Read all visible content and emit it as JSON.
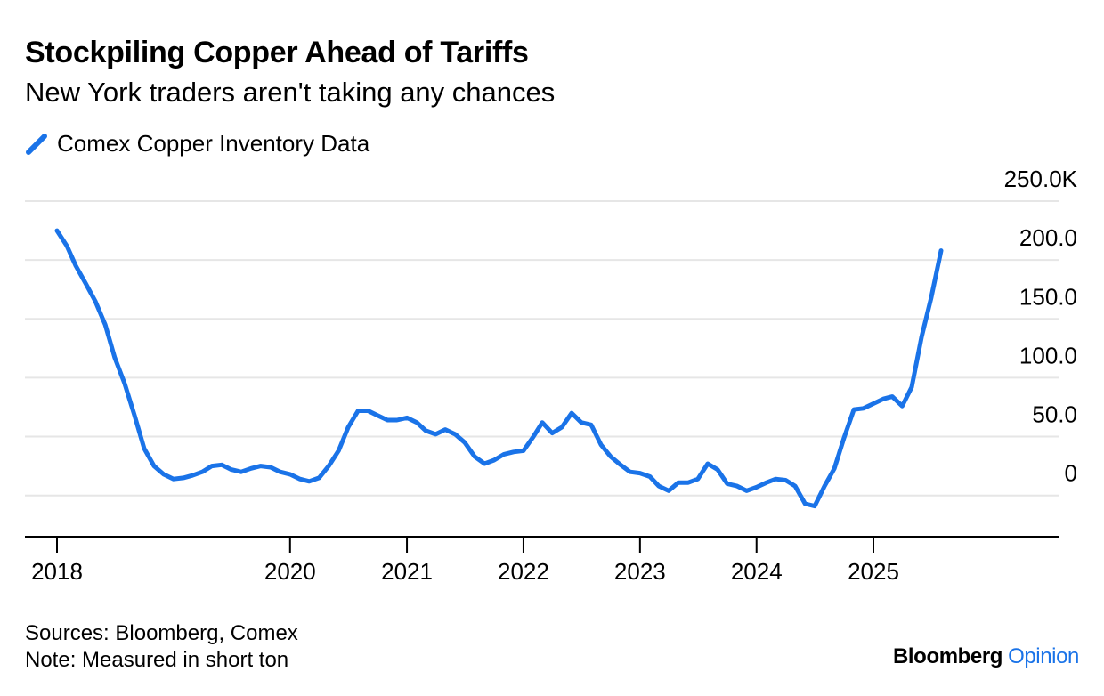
{
  "header": {
    "title": "Stockpiling Copper Ahead of Tariffs",
    "subtitle": "New York traders aren't taking any chances"
  },
  "footer": {
    "sources": "Sources: Bloomberg, Comex",
    "note": "Note: Measured in short ton",
    "brand_primary": "Bloomberg",
    "brand_secondary": "Opinion"
  },
  "colors": {
    "series": "#1a73e8",
    "grid": "#e6e6e6",
    "axis": "#000000"
  },
  "chart_data": {
    "type": "line",
    "title": "Stockpiling Copper Ahead of Tariffs",
    "subtitle": "New York traders aren't taking any chances",
    "series_name": "Comex Copper Inventory Data",
    "unit": "short ton",
    "ylim": [
      -35,
      250
    ],
    "yticks": [
      0,
      50,
      100,
      150,
      200,
      250
    ],
    "ytick_labels": [
      "0",
      "50.0",
      "100.0",
      "150.0",
      "200.0",
      "250.0K"
    ],
    "xticks": [
      "2018-01-01",
      "2020-01-01",
      "2021-01-01",
      "2022-01-01",
      "2023-01-01",
      "2024-01-01",
      "2025-01-01"
    ],
    "xtick_labels": [
      "2018",
      "2020",
      "2021",
      "2022",
      "2023",
      "2024",
      "2025"
    ],
    "grid": true,
    "legend_position": "top-left",
    "series": [
      {
        "name": "Comex Copper Inventory Data",
        "points": [
          [
            "2018-01-01",
            225
          ],
          [
            "2018-02-01",
            212
          ],
          [
            "2018-03-01",
            195
          ],
          [
            "2018-04-01",
            180
          ],
          [
            "2018-05-01",
            165
          ],
          [
            "2018-06-01",
            145
          ],
          [
            "2018-07-01",
            117
          ],
          [
            "2018-08-01",
            95
          ],
          [
            "2018-09-01",
            68
          ],
          [
            "2018-10-01",
            40
          ],
          [
            "2018-11-01",
            25
          ],
          [
            "2018-12-01",
            18
          ],
          [
            "2019-01-01",
            14
          ],
          [
            "2019-02-01",
            15
          ],
          [
            "2019-03-01",
            17
          ],
          [
            "2019-04-01",
            20
          ],
          [
            "2019-05-01",
            25
          ],
          [
            "2019-06-01",
            26
          ],
          [
            "2019-07-01",
            22
          ],
          [
            "2019-08-01",
            20
          ],
          [
            "2019-09-01",
            23
          ],
          [
            "2019-10-01",
            25
          ],
          [
            "2019-11-01",
            24
          ],
          [
            "2019-12-01",
            20
          ],
          [
            "2020-01-01",
            18
          ],
          [
            "2020-02-01",
            14
          ],
          [
            "2020-03-01",
            12
          ],
          [
            "2020-04-01",
            15
          ],
          [
            "2020-05-01",
            25
          ],
          [
            "2020-06-01",
            38
          ],
          [
            "2020-07-01",
            58
          ],
          [
            "2020-08-01",
            72
          ],
          [
            "2020-09-01",
            72
          ],
          [
            "2020-10-01",
            68
          ],
          [
            "2020-11-01",
            64
          ],
          [
            "2020-12-01",
            64
          ],
          [
            "2021-01-01",
            66
          ],
          [
            "2021-02-01",
            62
          ],
          [
            "2021-03-01",
            55
          ],
          [
            "2021-04-01",
            52
          ],
          [
            "2021-05-01",
            56
          ],
          [
            "2021-06-01",
            52
          ],
          [
            "2021-07-01",
            45
          ],
          [
            "2021-08-01",
            33
          ],
          [
            "2021-09-01",
            27
          ],
          [
            "2021-10-01",
            30
          ],
          [
            "2021-11-01",
            35
          ],
          [
            "2021-12-01",
            37
          ],
          [
            "2022-01-01",
            38
          ],
          [
            "2022-02-01",
            50
          ],
          [
            "2022-03-01",
            62
          ],
          [
            "2022-04-01",
            53
          ],
          [
            "2022-05-01",
            58
          ],
          [
            "2022-06-01",
            70
          ],
          [
            "2022-07-01",
            62
          ],
          [
            "2022-08-01",
            60
          ],
          [
            "2022-09-01",
            43
          ],
          [
            "2022-10-01",
            33
          ],
          [
            "2022-11-01",
            26
          ],
          [
            "2022-12-01",
            20
          ],
          [
            "2023-01-01",
            19
          ],
          [
            "2023-02-01",
            16
          ],
          [
            "2023-03-01",
            8
          ],
          [
            "2023-04-01",
            4
          ],
          [
            "2023-05-01",
            11
          ],
          [
            "2023-06-01",
            11
          ],
          [
            "2023-07-01",
            14
          ],
          [
            "2023-08-01",
            27
          ],
          [
            "2023-09-01",
            22
          ],
          [
            "2023-10-01",
            10
          ],
          [
            "2023-11-01",
            8
          ],
          [
            "2023-12-01",
            4
          ],
          [
            "2024-01-01",
            7
          ],
          [
            "2024-02-01",
            11
          ],
          [
            "2024-03-01",
            14
          ],
          [
            "2024-04-01",
            13
          ],
          [
            "2024-05-01",
            8
          ],
          [
            "2024-06-01",
            -7
          ],
          [
            "2024-07-01",
            -9
          ],
          [
            "2024-08-01",
            8
          ],
          [
            "2024-09-01",
            23
          ],
          [
            "2024-10-01",
            49
          ],
          [
            "2024-11-01",
            73
          ],
          [
            "2024-12-01",
            74
          ],
          [
            "2025-01-01",
            78
          ],
          [
            "2025-02-01",
            82
          ],
          [
            "2025-03-01",
            84
          ],
          [
            "2025-04-01",
            76
          ],
          [
            "2025-05-01",
            92
          ],
          [
            "2025-06-01",
            135
          ],
          [
            "2025-07-01",
            168
          ],
          [
            "2025-08-01",
            208
          ]
        ]
      }
    ]
  }
}
